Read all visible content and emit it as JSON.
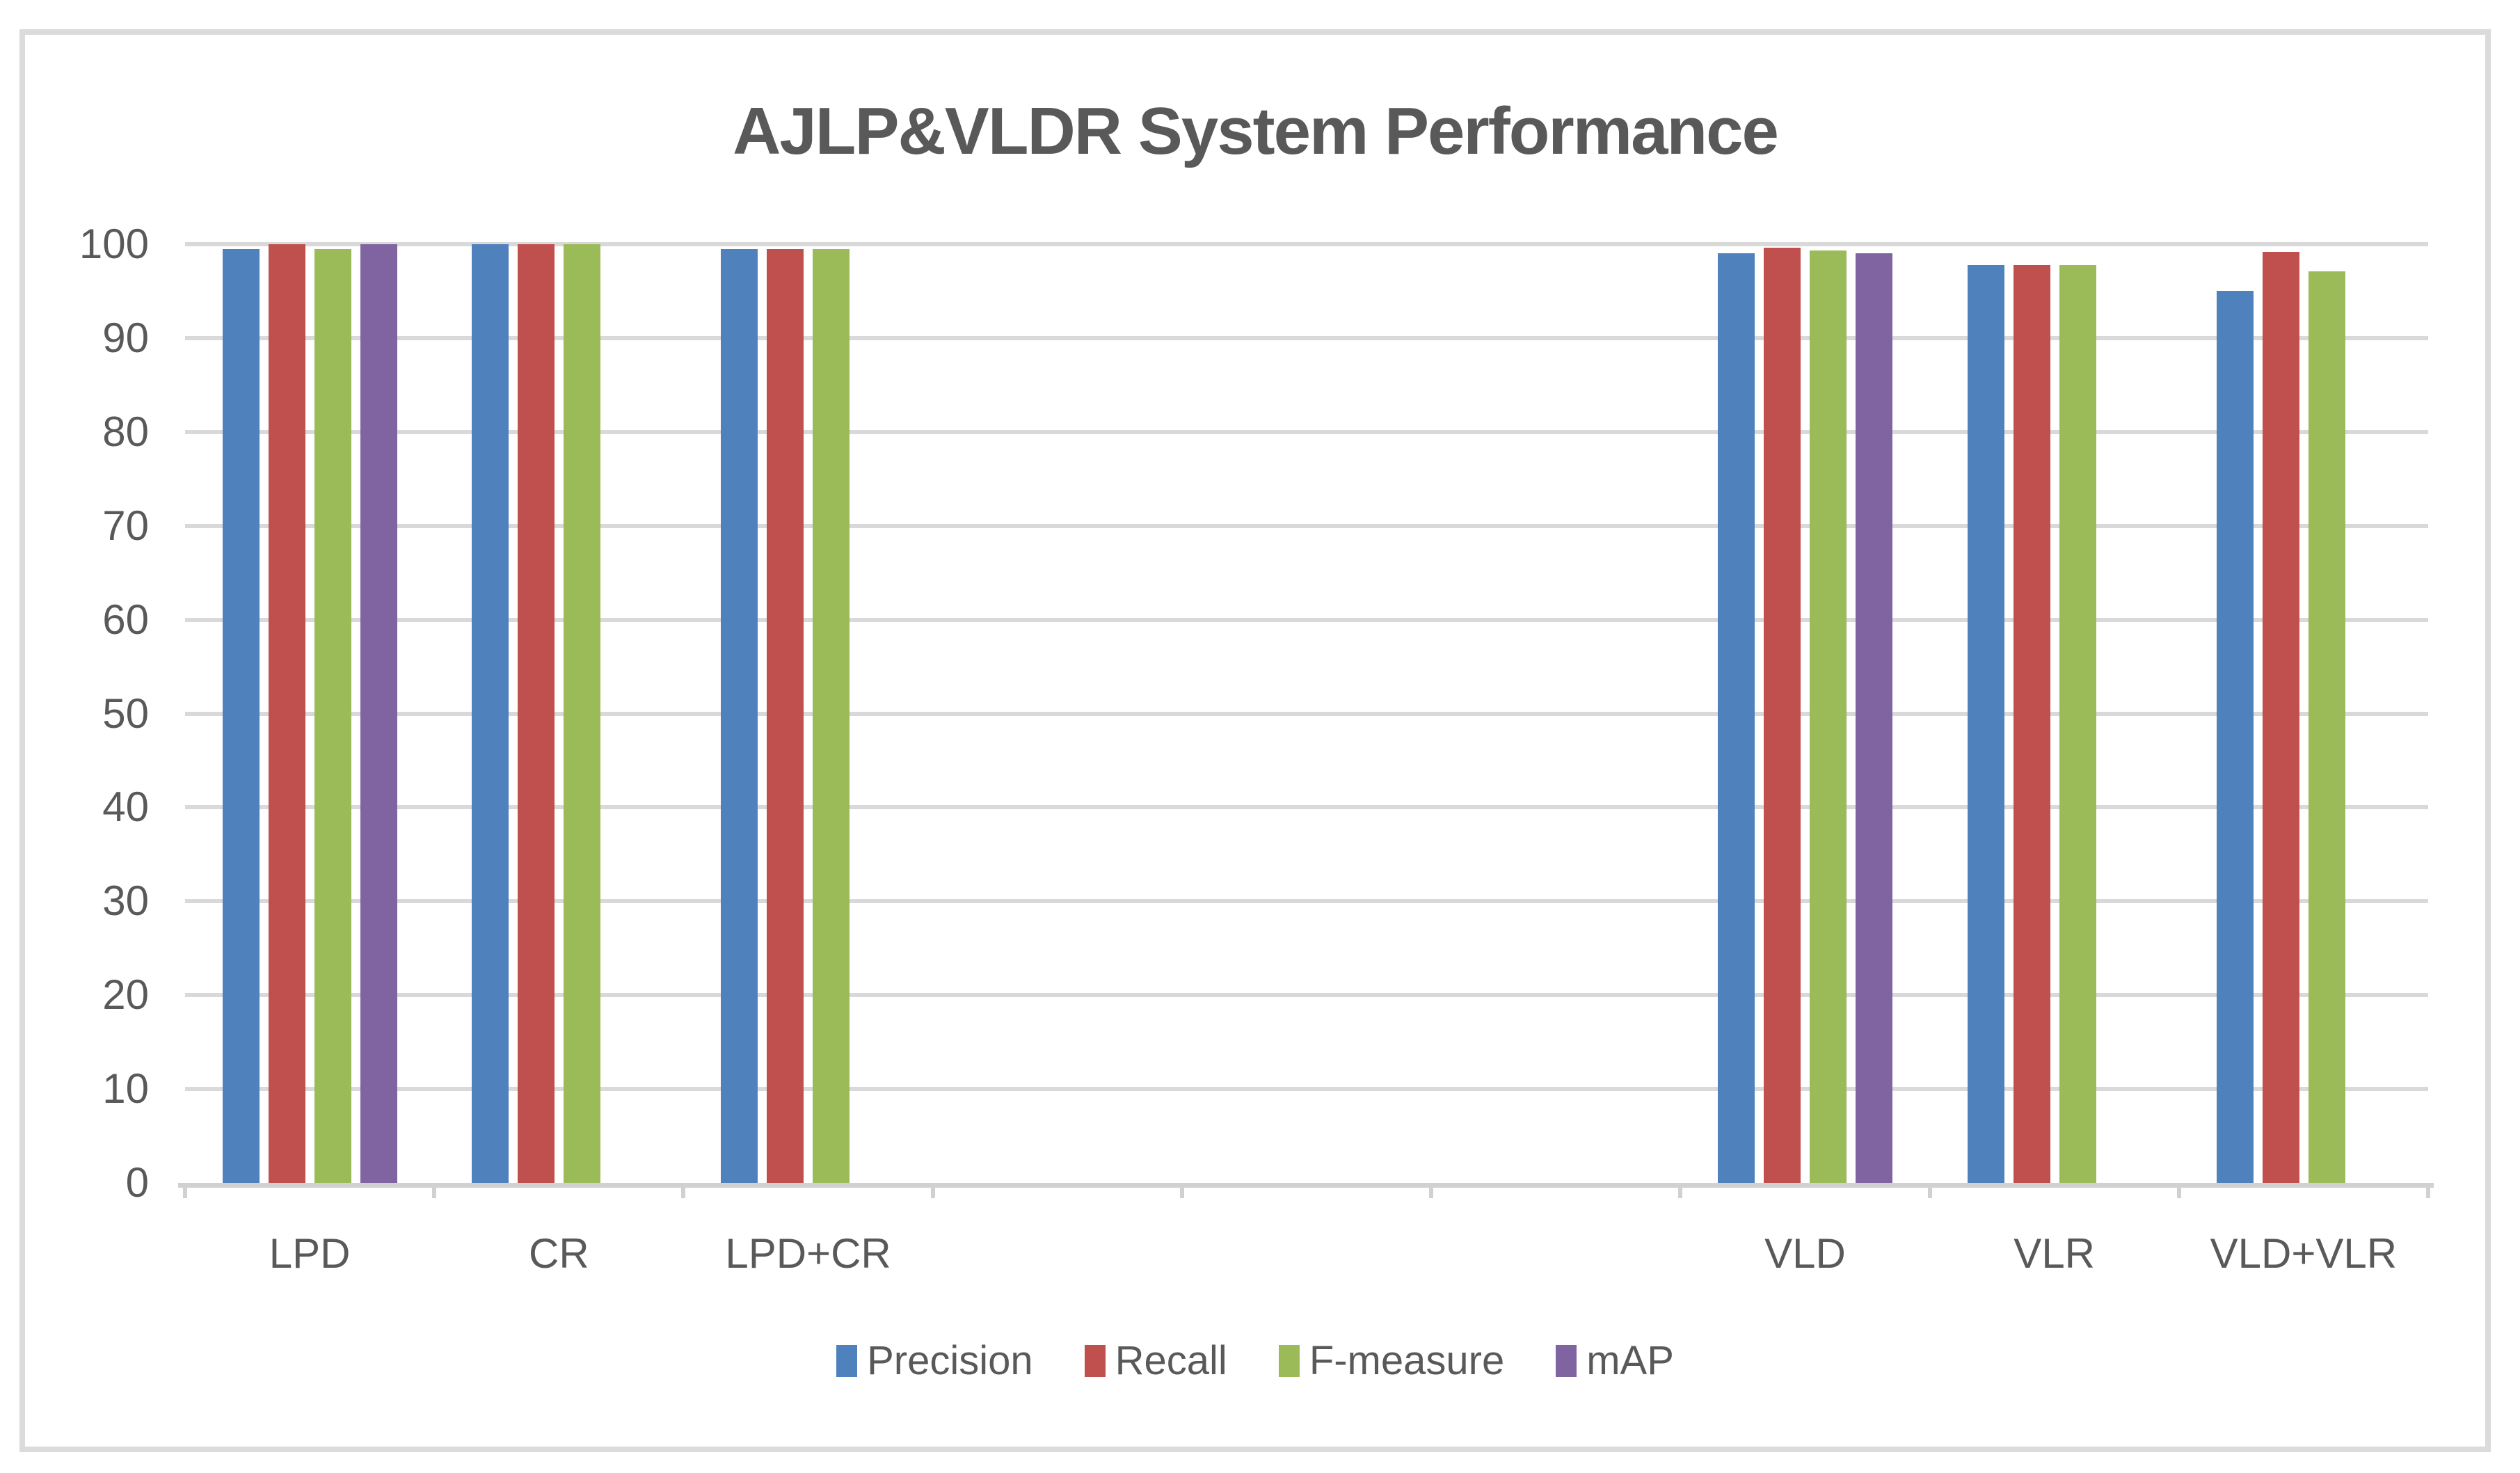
{
  "title": "AJLP&VLDR System Performance",
  "colors": {
    "precision_blue": "#4F81BD",
    "recall_red": "#C0504D",
    "fmeasure_green": "#9BBB59",
    "map_purple": "#8064A2"
  },
  "chart_data": {
    "type": "bar",
    "title": "AJLP&VLDR System Performance",
    "categories": [
      "LPD",
      "CR",
      "LPD+CR",
      "",
      "",
      "",
      "VLD",
      "VLR",
      "VLD+VLR"
    ],
    "series": [
      {
        "name": "Precision",
        "color": "#4F81BD",
        "values": [
          99.5,
          100,
          99.5,
          null,
          null,
          null,
          99.0,
          97.8,
          95.0
        ]
      },
      {
        "name": "Recall",
        "color": "#C0504D",
        "values": [
          100,
          100,
          99.5,
          null,
          null,
          null,
          99.6,
          97.8,
          99.2
        ]
      },
      {
        "name": "F-measure",
        "color": "#9BBB59",
        "values": [
          99.5,
          100,
          99.5,
          null,
          null,
          null,
          99.3,
          97.8,
          97.1
        ]
      },
      {
        "name": "mAP",
        "color": "#8064A2",
        "values": [
          100,
          null,
          null,
          null,
          null,
          null,
          99.0,
          null,
          null
        ]
      }
    ],
    "xlabel": "",
    "ylabel": "",
    "ylim": [
      0,
      100
    ],
    "ytick_step": 10,
    "yticks": [
      "0",
      "10",
      "20",
      "30",
      "40",
      "50",
      "60",
      "70",
      "80",
      "90",
      "100"
    ],
    "grid": true,
    "legend_position": "bottom"
  }
}
